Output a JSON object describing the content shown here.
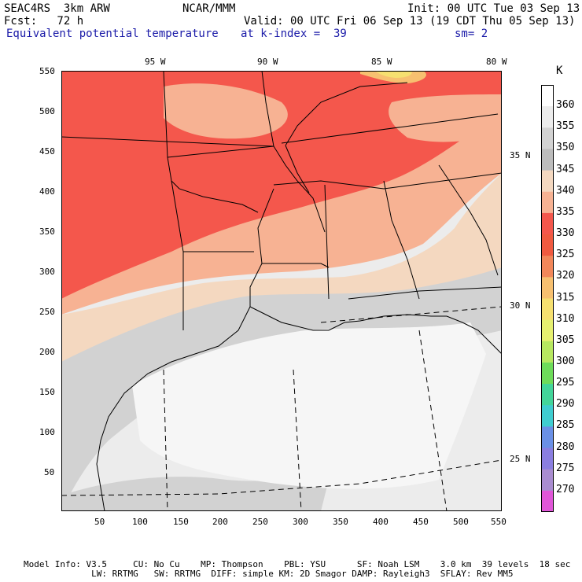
{
  "header": {
    "model": "SEAC4RS  3km ARW",
    "org": "NCAR/MMM",
    "init": "Init: 00 UTC Tue 03 Sep 13",
    "fcst": "Fcst:   72 h",
    "valid": "Valid: 00 UTC Fri 06 Sep 13 (19 CDT Thu 05 Sep 13)",
    "field": "Equivalent potential temperature",
    "level": "at k-index =  39",
    "smooth": "sm= 2"
  },
  "top_lon_labels": [
    "95 W",
    "90 W",
    "85 W",
    "80 W"
  ],
  "right_lat_labels": [
    "35 N",
    "30 N",
    "25 N"
  ],
  "y_ticks": [
    "550",
    "500",
    "450",
    "400",
    "350",
    "300",
    "250",
    "200",
    "150",
    "100",
    "50"
  ],
  "x_ticks": [
    "50",
    "100",
    "150",
    "200",
    "250",
    "300",
    "350",
    "400",
    "450",
    "500",
    "550"
  ],
  "colorbar": {
    "unit": "K",
    "levels": [
      "360",
      "355",
      "350",
      "345",
      "340",
      "335",
      "330",
      "325",
      "320",
      "315",
      "310",
      "305",
      "300",
      "295",
      "290",
      "285",
      "280",
      "275",
      "270"
    ],
    "colors": [
      "#ffffff",
      "#ececec",
      "#d2d2d2",
      "#bcbcbc",
      "#f4d8c0",
      "#f7b293",
      "#f4574c",
      "#f05a40",
      "#f2875a",
      "#f7c070",
      "#f6e070",
      "#e6f070",
      "#b7e860",
      "#6edc5a",
      "#43d59a",
      "#3fcdd0",
      "#6a90e6",
      "#8a7ee0",
      "#a98cd0",
      "#e056d8"
    ]
  },
  "footer": {
    "line1": "Model Info: V3.5     CU: No Cu    MP: Thompson    PBL: YSU      SF: Noah LSM    3.0 km  39 levels  18 sec",
    "line2": "             LW: RRTMG   SW: RRTMG  DIFF: simple KM: 2D Smagor DAMP: Rayleigh3  SFLAY: Rev MM5"
  }
}
